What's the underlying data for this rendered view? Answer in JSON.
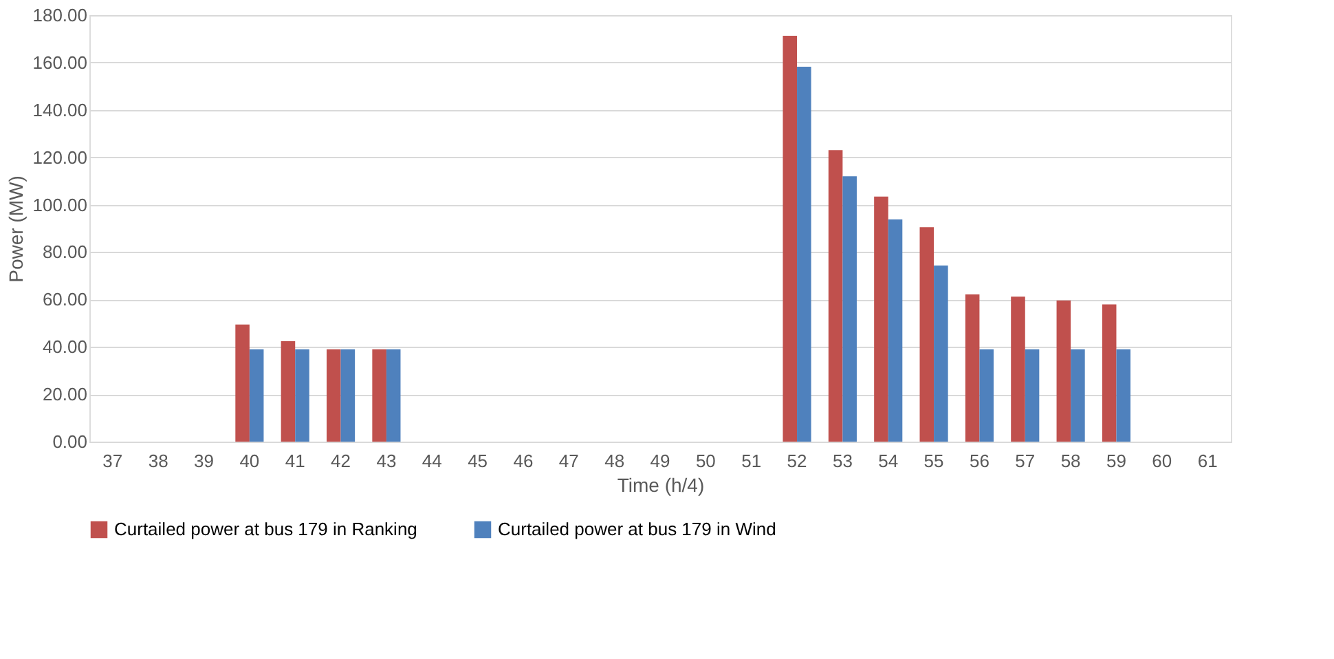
{
  "chart_data": {
    "type": "bar",
    "xlabel": "Time (h/4)",
    "ylabel": "Power (MW)",
    "categories": [
      "37",
      "38",
      "39",
      "40",
      "41",
      "42",
      "43",
      "44",
      "45",
      "46",
      "47",
      "48",
      "49",
      "50",
      "51",
      "52",
      "53",
      "54",
      "55",
      "56",
      "57",
      "58",
      "59",
      "60",
      "61"
    ],
    "series": [
      {
        "name": "Curtailed power at bus 179 in Ranking",
        "color": "#c0504d",
        "values": [
          0,
          0,
          0,
          49.4,
          42.4,
          39,
          39,
          0,
          0,
          0,
          0,
          0,
          0,
          0,
          0,
          171.3,
          123,
          103.4,
          90.5,
          62.1,
          61.2,
          59.6,
          57.9,
          0,
          0
        ]
      },
      {
        "name": "Curtailed power at bus 179 in Wind",
        "color": "#4f81bd",
        "values": [
          0,
          0,
          0,
          39,
          39,
          39,
          39,
          0,
          0,
          0,
          0,
          0,
          0,
          0,
          0,
          158.2,
          112,
          93.8,
          74.3,
          39,
          39,
          39,
          39,
          0,
          0
        ]
      }
    ],
    "ylim": [
      0,
      180
    ],
    "yticks": [
      {
        "value": 0,
        "label": "0.00"
      },
      {
        "value": 20,
        "label": "20.00"
      },
      {
        "value": 40,
        "label": "40.00"
      },
      {
        "value": 60,
        "label": "60.00"
      },
      {
        "value": 80,
        "label": "80.00"
      },
      {
        "value": 100,
        "label": "100.00"
      },
      {
        "value": 120,
        "label": "120.00"
      },
      {
        "value": 140,
        "label": "140.00"
      },
      {
        "value": 160,
        "label": "160.00"
      },
      {
        "value": 180,
        "label": "180.00"
      }
    ],
    "grid": "y",
    "legend": "bottom"
  }
}
